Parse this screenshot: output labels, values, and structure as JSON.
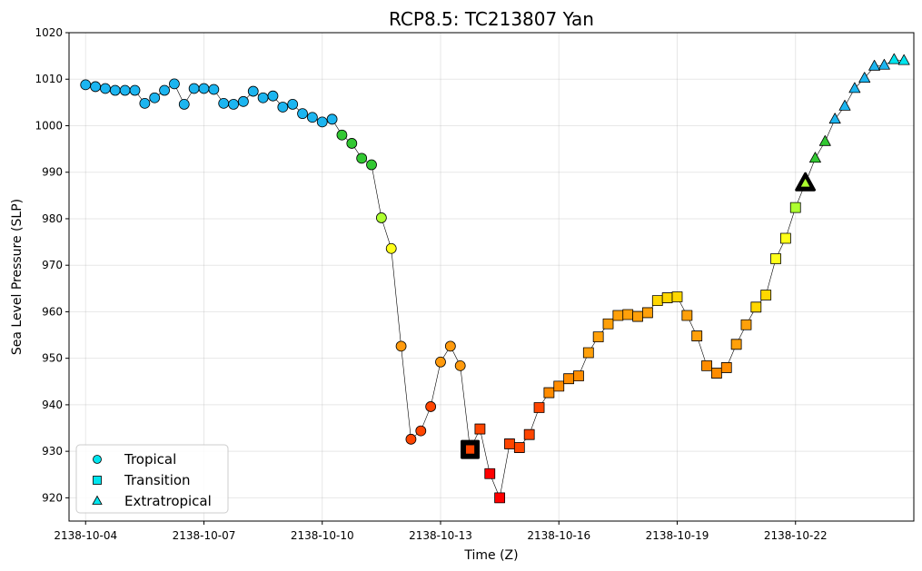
{
  "chart_data": {
    "type": "scatter",
    "title": "RCP8.5: TC213807 Yan",
    "xlabel": "Time (Z)",
    "ylabel": "Sea Level Pressure (SLP)",
    "ylim": [
      915,
      1020
    ],
    "yticks": [
      920,
      930,
      940,
      950,
      960,
      970,
      980,
      990,
      1000,
      1010,
      1020
    ],
    "xlim": [
      -0.42,
      21.0
    ],
    "xticks": [
      {
        "value": 0,
        "label": "2138-10-04"
      },
      {
        "value": 3,
        "label": "2138-10-07"
      },
      {
        "value": 6,
        "label": "2138-10-10"
      },
      {
        "value": 9,
        "label": "2138-10-13"
      },
      {
        "value": 12,
        "label": "2138-10-16"
      },
      {
        "value": 15,
        "label": "2138-10-19"
      },
      {
        "value": 18,
        "label": "2138-10-22"
      }
    ],
    "x_unit": "days since 2138-10-04 00Z",
    "grid": true,
    "legend": {
      "position": "lower-left",
      "entries": [
        {
          "label": "Tropical",
          "marker": "circle",
          "color": "#00e5ee"
        },
        {
          "label": "Transition",
          "marker": "square",
          "color": "#00e5ee"
        },
        {
          "label": "Extratropical",
          "marker": "triangle",
          "color": "#00e5ee"
        }
      ]
    },
    "series": [
      {
        "name": "Tropical",
        "marker": "circle",
        "points": [
          {
            "x": 0.0,
            "y": 1008.8,
            "color": "#1cb5f0"
          },
          {
            "x": 0.25,
            "y": 1008.4,
            "color": "#1cb5f0"
          },
          {
            "x": 0.5,
            "y": 1008.0,
            "color": "#1cb5f0"
          },
          {
            "x": 0.75,
            "y": 1007.6,
            "color": "#1cb5f0"
          },
          {
            "x": 1.0,
            "y": 1007.6,
            "color": "#1cb5f0"
          },
          {
            "x": 1.25,
            "y": 1007.6,
            "color": "#1cb5f0"
          },
          {
            "x": 1.5,
            "y": 1004.8,
            "color": "#1cb5f0"
          },
          {
            "x": 1.75,
            "y": 1006.0,
            "color": "#1cb5f0"
          },
          {
            "x": 2.0,
            "y": 1007.6,
            "color": "#1cb5f0"
          },
          {
            "x": 2.25,
            "y": 1009.0,
            "color": "#1cb5f0"
          },
          {
            "x": 2.5,
            "y": 1004.6,
            "color": "#1cb5f0"
          },
          {
            "x": 2.75,
            "y": 1008.0,
            "color": "#1cb5f0"
          },
          {
            "x": 3.0,
            "y": 1008.0,
            "color": "#1cb5f0"
          },
          {
            "x": 3.25,
            "y": 1007.8,
            "color": "#1cb5f0"
          },
          {
            "x": 3.5,
            "y": 1004.8,
            "color": "#1cb5f0"
          },
          {
            "x": 3.75,
            "y": 1004.6,
            "color": "#1cb5f0"
          },
          {
            "x": 4.0,
            "y": 1005.2,
            "color": "#1cb5f0"
          },
          {
            "x": 4.25,
            "y": 1007.4,
            "color": "#1cb5f0"
          },
          {
            "x": 4.5,
            "y": 1006.0,
            "color": "#1cb5f0"
          },
          {
            "x": 4.75,
            "y": 1006.4,
            "color": "#1cb5f0"
          },
          {
            "x": 5.0,
            "y": 1004.0,
            "color": "#1cb5f0"
          },
          {
            "x": 5.25,
            "y": 1004.6,
            "color": "#1cb5f0"
          },
          {
            "x": 5.5,
            "y": 1002.6,
            "color": "#1cb5f0"
          },
          {
            "x": 5.75,
            "y": 1001.8,
            "color": "#1cb5f0"
          },
          {
            "x": 6.0,
            "y": 1000.8,
            "color": "#1cb5f0"
          },
          {
            "x": 6.25,
            "y": 1001.4,
            "color": "#1cb5f0"
          },
          {
            "x": 6.5,
            "y": 998.0,
            "color": "#32c832"
          },
          {
            "x": 6.75,
            "y": 996.2,
            "color": "#32c832"
          },
          {
            "x": 7.0,
            "y": 993.0,
            "color": "#32c832"
          },
          {
            "x": 7.25,
            "y": 991.6,
            "color": "#32c832"
          },
          {
            "x": 7.5,
            "y": 980.2,
            "color": "#adff2f"
          },
          {
            "x": 7.75,
            "y": 973.6,
            "color": "#ffff19"
          },
          {
            "x": 8.0,
            "y": 952.6,
            "color": "#ff9a0d"
          },
          {
            "x": 8.25,
            "y": 932.6,
            "color": "#ff4500"
          },
          {
            "x": 8.5,
            "y": 934.4,
            "color": "#ff4500"
          },
          {
            "x": 8.75,
            "y": 939.6,
            "color": "#ff4500"
          },
          {
            "x": 9.0,
            "y": 949.2,
            "color": "#ff9a0d"
          },
          {
            "x": 9.25,
            "y": 952.6,
            "color": "#ff9a0d"
          },
          {
            "x": 9.5,
            "y": 948.4,
            "color": "#ff9a0d"
          }
        ]
      },
      {
        "name": "Transition",
        "marker": "square",
        "points": [
          {
            "x": 9.75,
            "y": 930.4,
            "color": "#ff4500",
            "highlight": true
          },
          {
            "x": 10.0,
            "y": 934.8,
            "color": "#ff4500"
          },
          {
            "x": 10.25,
            "y": 925.2,
            "color": "#ff0000"
          },
          {
            "x": 10.5,
            "y": 920.0,
            "color": "#ff0000"
          },
          {
            "x": 10.75,
            "y": 931.6,
            "color": "#ff4500"
          },
          {
            "x": 11.0,
            "y": 930.8,
            "color": "#ff4500"
          },
          {
            "x": 11.25,
            "y": 933.6,
            "color": "#ff4500"
          },
          {
            "x": 11.5,
            "y": 939.4,
            "color": "#ff4500"
          },
          {
            "x": 11.75,
            "y": 942.6,
            "color": "#ff8c00"
          },
          {
            "x": 12.0,
            "y": 944.0,
            "color": "#ff8c00"
          },
          {
            "x": 12.25,
            "y": 945.6,
            "color": "#ff8c00"
          },
          {
            "x": 12.5,
            "y": 946.2,
            "color": "#ff8c00"
          },
          {
            "x": 12.75,
            "y": 951.2,
            "color": "#ffa00a"
          },
          {
            "x": 13.0,
            "y": 954.6,
            "color": "#ffa00a"
          },
          {
            "x": 13.25,
            "y": 957.4,
            "color": "#ffa00a"
          },
          {
            "x": 13.5,
            "y": 959.2,
            "color": "#ffa00a"
          },
          {
            "x": 13.75,
            "y": 959.4,
            "color": "#ffa00a"
          },
          {
            "x": 14.0,
            "y": 959.0,
            "color": "#ffa00a"
          },
          {
            "x": 14.25,
            "y": 959.8,
            "color": "#ffa00a"
          },
          {
            "x": 14.5,
            "y": 962.4,
            "color": "#ffd700"
          },
          {
            "x": 14.75,
            "y": 963.0,
            "color": "#ffd700"
          },
          {
            "x": 15.0,
            "y": 963.2,
            "color": "#ffd700"
          },
          {
            "x": 15.25,
            "y": 959.2,
            "color": "#ffa00a"
          },
          {
            "x": 15.5,
            "y": 954.8,
            "color": "#ffa00a"
          },
          {
            "x": 15.75,
            "y": 948.4,
            "color": "#ff8c00"
          },
          {
            "x": 16.0,
            "y": 946.8,
            "color": "#ff8c00"
          },
          {
            "x": 16.25,
            "y": 948.0,
            "color": "#ff8c00"
          },
          {
            "x": 16.5,
            "y": 953.0,
            "color": "#ffa00a"
          },
          {
            "x": 16.75,
            "y": 957.2,
            "color": "#ffa00a"
          },
          {
            "x": 17.0,
            "y": 961.0,
            "color": "#ffd700"
          },
          {
            "x": 17.25,
            "y": 963.6,
            "color": "#ffd700"
          },
          {
            "x": 17.5,
            "y": 971.4,
            "color": "#ffff19"
          },
          {
            "x": 17.75,
            "y": 975.8,
            "color": "#ffff19"
          },
          {
            "x": 18.0,
            "y": 982.4,
            "color": "#adff2f"
          }
        ]
      },
      {
        "name": "Extratropical",
        "marker": "triangle",
        "points": [
          {
            "x": 18.25,
            "y": 987.6,
            "color": "#adff2f",
            "highlight": true
          },
          {
            "x": 18.5,
            "y": 993.0,
            "color": "#32c832"
          },
          {
            "x": 18.75,
            "y": 996.6,
            "color": "#32c832"
          },
          {
            "x": 19.0,
            "y": 1001.4,
            "color": "#1cb5f0"
          },
          {
            "x": 19.25,
            "y": 1004.2,
            "color": "#1cb5f0"
          },
          {
            "x": 19.5,
            "y": 1008.0,
            "color": "#1cb5f0"
          },
          {
            "x": 19.75,
            "y": 1010.2,
            "color": "#1cb5f0"
          },
          {
            "x": 20.0,
            "y": 1012.8,
            "color": "#1cb5f0"
          },
          {
            "x": 20.25,
            "y": 1013.0,
            "color": "#1cb5f0"
          },
          {
            "x": 20.5,
            "y": 1014.2,
            "color": "#00e5ee"
          },
          {
            "x": 20.75,
            "y": 1014.0,
            "color": "#00e5ee"
          }
        ]
      }
    ]
  }
}
